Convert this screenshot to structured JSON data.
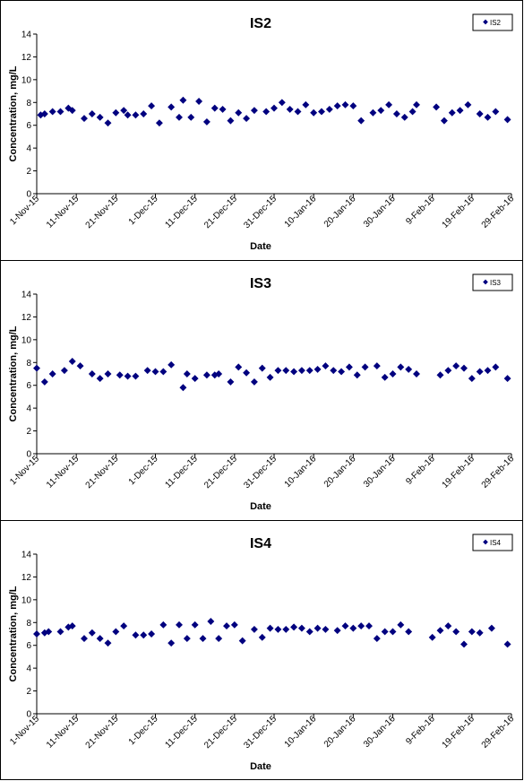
{
  "chart_data": [
    {
      "type": "scatter",
      "title": "IS2",
      "xlabel": "Date",
      "ylabel": "Concentration, mg/L",
      "ylim": [
        0,
        14
      ],
      "yticks": [
        0,
        2,
        4,
        6,
        8,
        10,
        12,
        14
      ],
      "xlim": [
        "2015-11-01",
        "2016-02-29"
      ],
      "xtick_labels": [
        "1-Nov-15",
        "11-Nov-15",
        "21-Nov-15",
        "1-Dec-15",
        "11-Dec-15",
        "21-Dec-15",
        "31-Dec-15",
        "10-Jan-16",
        "20-Jan-16",
        "30-Jan-16",
        "9-Feb-16",
        "19-Feb-16",
        "29-Feb-16"
      ],
      "grid": false,
      "legend_position": "top-right",
      "marker_color": "#00007F",
      "series": [
        {
          "name": "IS2",
          "x": [
            "2015-11-02",
            "2015-11-03",
            "2015-11-05",
            "2015-11-07",
            "2015-11-09",
            "2015-11-10",
            "2015-11-13",
            "2015-11-15",
            "2015-11-17",
            "2015-11-19",
            "2015-11-21",
            "2015-11-23",
            "2015-11-24",
            "2015-11-26",
            "2015-11-28",
            "2015-11-30",
            "2015-12-02",
            "2015-12-05",
            "2015-12-07",
            "2015-12-08",
            "2015-12-10",
            "2015-12-12",
            "2015-12-14",
            "2015-12-16",
            "2015-12-18",
            "2015-12-20",
            "2015-12-22",
            "2015-12-24",
            "2015-12-26",
            "2015-12-29",
            "2015-12-31",
            "2016-01-02",
            "2016-01-04",
            "2016-01-06",
            "2016-01-08",
            "2016-01-10",
            "2016-01-12",
            "2016-01-14",
            "2016-01-16",
            "2016-01-18",
            "2016-01-20",
            "2016-01-22",
            "2016-01-25",
            "2016-01-27",
            "2016-01-29",
            "2016-01-31",
            "2016-02-02",
            "2016-02-04",
            "2016-02-05",
            "2016-02-10",
            "2016-02-12",
            "2016-02-14",
            "2016-02-16",
            "2016-02-18",
            "2016-02-21",
            "2016-02-23",
            "2016-02-25",
            "2016-02-28"
          ],
          "y": [
            6.9,
            7.0,
            7.2,
            7.2,
            7.5,
            7.3,
            6.6,
            7.0,
            6.7,
            6.2,
            7.1,
            7.3,
            6.9,
            6.9,
            7.0,
            7.7,
            6.2,
            7.6,
            6.7,
            8.2,
            6.7,
            8.1,
            6.3,
            7.5,
            7.4,
            6.4,
            7.1,
            6.6,
            7.3,
            7.2,
            7.5,
            8.0,
            7.4,
            7.2,
            7.8,
            7.1,
            7.2,
            7.4,
            7.7,
            7.8,
            7.7,
            6.4,
            7.1,
            7.3,
            7.8,
            7.0,
            6.7,
            7.2,
            7.8,
            7.6,
            6.4,
            7.1,
            7.3,
            7.8,
            7.0,
            6.7,
            7.2,
            6.5
          ]
        }
      ]
    },
    {
      "type": "scatter",
      "title": "IS3",
      "xlabel": "Date",
      "ylabel": "Concentration, mg/L",
      "ylim": [
        0,
        14
      ],
      "yticks": [
        0,
        2,
        4,
        6,
        8,
        10,
        12,
        14
      ],
      "xlim": [
        "2015-11-01",
        "2016-02-29"
      ],
      "xtick_labels": [
        "1-Nov-15",
        "11-Nov-15",
        "21-Nov-15",
        "1-Dec-15",
        "11-Dec-15",
        "21-Dec-15",
        "31-Dec-15",
        "10-Jan-16",
        "20-Jan-16",
        "30-Jan-16",
        "9-Feb-16",
        "19-Feb-16",
        "29-Feb-16"
      ],
      "grid": false,
      "legend_position": "top-right",
      "marker_color": "#00007F",
      "series": [
        {
          "name": "IS3",
          "x": [
            "2015-11-01",
            "2015-11-03",
            "2015-11-05",
            "2015-11-08",
            "2015-11-10",
            "2015-11-12",
            "2015-11-15",
            "2015-11-17",
            "2015-11-19",
            "2015-11-22",
            "2015-11-24",
            "2015-11-26",
            "2015-11-29",
            "2015-12-01",
            "2015-12-03",
            "2015-12-05",
            "2015-12-08",
            "2015-12-09",
            "2015-12-11",
            "2015-12-14",
            "2015-12-16",
            "2015-12-17",
            "2015-12-20",
            "2015-12-22",
            "2015-12-24",
            "2015-12-26",
            "2015-12-28",
            "2015-12-30",
            "2016-01-01",
            "2016-01-03",
            "2016-01-05",
            "2016-01-07",
            "2016-01-09",
            "2016-01-11",
            "2016-01-13",
            "2016-01-15",
            "2016-01-17",
            "2016-01-19",
            "2016-01-21",
            "2016-01-23",
            "2016-01-26",
            "2016-01-28",
            "2016-01-30",
            "2016-02-01",
            "2016-02-03",
            "2016-02-05",
            "2016-02-11",
            "2016-02-13",
            "2016-02-15",
            "2016-02-17",
            "2016-02-19",
            "2016-02-21",
            "2016-02-23",
            "2016-02-25",
            "2016-02-28"
          ],
          "y": [
            7.5,
            6.3,
            7.0,
            7.3,
            8.1,
            7.7,
            7.0,
            6.6,
            7.0,
            6.9,
            6.8,
            6.8,
            7.3,
            7.2,
            7.2,
            7.8,
            5.8,
            7.0,
            6.6,
            6.9,
            6.9,
            7.0,
            6.3,
            7.6,
            7.1,
            6.3,
            7.5,
            6.7,
            7.3,
            7.3,
            7.2,
            7.3,
            7.3,
            7.4,
            7.7,
            7.3,
            7.2,
            7.6,
            6.9,
            7.6,
            7.7,
            6.7,
            7.0,
            7.6,
            7.4,
            7.0,
            6.9,
            7.3,
            7.7,
            7.5,
            6.6,
            7.2,
            7.3,
            7.6,
            6.6
          ]
        }
      ]
    },
    {
      "type": "scatter",
      "title": "IS4",
      "xlabel": "Date",
      "ylabel": "Concentration, mg/L",
      "ylim": [
        0,
        14
      ],
      "yticks": [
        0,
        2,
        4,
        6,
        8,
        10,
        12,
        14
      ],
      "xlim": [
        "2015-11-01",
        "2016-02-29"
      ],
      "xtick_labels": [
        "1-Nov-15",
        "11-Nov-15",
        "21-Nov-15",
        "1-Dec-15",
        "11-Dec-15",
        "21-Dec-15",
        "31-Dec-15",
        "10-Jan-16",
        "20-Jan-16",
        "30-Jan-16",
        "9-Feb-16",
        "19-Feb-16",
        "29-Feb-16"
      ],
      "grid": false,
      "legend_position": "top-right",
      "marker_color": "#00007F",
      "series": [
        {
          "name": "IS4",
          "x": [
            "2015-11-01",
            "2015-11-03",
            "2015-11-04",
            "2015-11-07",
            "2015-11-09",
            "2015-11-10",
            "2015-11-13",
            "2015-11-15",
            "2015-11-17",
            "2015-11-19",
            "2015-11-21",
            "2015-11-23",
            "2015-11-26",
            "2015-11-28",
            "2015-11-30",
            "2015-12-03",
            "2015-12-05",
            "2015-12-07",
            "2015-12-09",
            "2015-12-11",
            "2015-12-13",
            "2015-12-15",
            "2015-12-17",
            "2015-12-19",
            "2015-12-21",
            "2015-12-23",
            "2015-12-26",
            "2015-12-28",
            "2015-12-30",
            "2016-01-01",
            "2016-01-03",
            "2016-01-05",
            "2016-01-07",
            "2016-01-09",
            "2016-01-11",
            "2016-01-13",
            "2016-01-16",
            "2016-01-18",
            "2016-01-20",
            "2016-01-22",
            "2016-01-24",
            "2016-01-26",
            "2016-01-28",
            "2016-01-30",
            "2016-02-01",
            "2016-02-03",
            "2016-02-09",
            "2016-02-11",
            "2016-02-13",
            "2016-02-15",
            "2016-02-17",
            "2016-02-19",
            "2016-02-21",
            "2016-02-24",
            "2016-02-28"
          ],
          "y": [
            7.0,
            7.1,
            7.2,
            7.2,
            7.6,
            7.7,
            6.6,
            7.1,
            6.6,
            6.2,
            7.2,
            7.7,
            6.9,
            6.9,
            7.0,
            7.8,
            6.2,
            7.8,
            6.6,
            7.8,
            6.6,
            8.1,
            6.6,
            7.7,
            7.8,
            6.4,
            7.4,
            6.7,
            7.5,
            7.4,
            7.4,
            7.6,
            7.5,
            7.2,
            7.5,
            7.4,
            7.3,
            7.7,
            7.5,
            7.7,
            7.7,
            6.6,
            7.2,
            7.2,
            7.8,
            7.2,
            6.7,
            7.3,
            7.7,
            7.2,
            6.1,
            7.2,
            7.1,
            7.5,
            6.1
          ]
        }
      ]
    }
  ]
}
